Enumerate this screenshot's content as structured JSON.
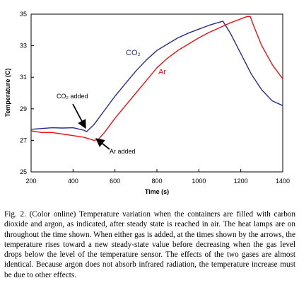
{
  "chart_data": {
    "type": "line",
    "title": "",
    "xlabel": "Time (s)",
    "ylabel": "Temperature (C)",
    "xlim": [
      200,
      1400
    ],
    "ylim": [
      25,
      35
    ],
    "xticks": [
      "200",
      "400",
      "600",
      "800",
      "1000",
      "1200",
      "1400"
    ],
    "yticks": [
      "25",
      "27",
      "29",
      "31",
      "33",
      "35"
    ],
    "series": [
      {
        "name": "CO2",
        "color": "#2b2b8c",
        "x": [
          200,
          250,
          300,
          350,
          400,
          450,
          465,
          480,
          500,
          550,
          600,
          650,
          700,
          750,
          800,
          850,
          900,
          950,
          1000,
          1050,
          1100,
          1115,
          1150,
          1200,
          1250,
          1300,
          1350,
          1400
        ],
        "y": [
          27.7,
          27.75,
          27.8,
          27.78,
          27.8,
          27.65,
          27.55,
          27.75,
          28.0,
          28.9,
          29.8,
          30.6,
          31.4,
          32.1,
          32.7,
          33.1,
          33.5,
          33.8,
          34.05,
          34.3,
          34.5,
          34.55,
          33.8,
          32.5,
          31.2,
          30.2,
          29.5,
          29.2
        ]
      },
      {
        "name": "Ar",
        "color": "#ee1111",
        "x": [
          200,
          250,
          300,
          350,
          400,
          450,
          500,
          520,
          550,
          600,
          650,
          700,
          750,
          800,
          850,
          900,
          950,
          1000,
          1050,
          1100,
          1150,
          1200,
          1230,
          1245,
          1260,
          1300,
          1350,
          1400
        ],
        "y": [
          27.6,
          27.5,
          27.5,
          27.4,
          27.3,
          27.2,
          27.0,
          27.05,
          27.5,
          28.4,
          29.2,
          30.0,
          30.8,
          31.6,
          32.2,
          32.7,
          33.1,
          33.5,
          33.85,
          34.15,
          34.45,
          34.7,
          34.85,
          34.85,
          34.3,
          33.0,
          31.8,
          30.9
        ]
      }
    ],
    "annotations": [
      {
        "text": "CO₂ added",
        "x": 463,
        "y": 27.6
      },
      {
        "text": "Ar added",
        "x": 510,
        "y": 27.0
      }
    ],
    "series_labels": [
      {
        "text": "CO₂",
        "color": "#2b2b8c"
      },
      {
        "text": "Ar",
        "color": "#ee1111"
      }
    ],
    "grid": false,
    "legend": "inline"
  },
  "caption": "Fig. 2. (Color online) Temperature variation when the containers are filled with carbon dioxide and argon, as indicated, after steady state is reached in air. The heat lamps are on throughout the time shown. When either gas is added, at the times shown by the arrows, the temperature rises toward a new steady-state value before decreasing when the gas level drops below the level of the temperature sensor. The effects of the two gases are almost identical. Because argon does not absorb infrared radiation, the temperature increase must be due to other effects."
}
